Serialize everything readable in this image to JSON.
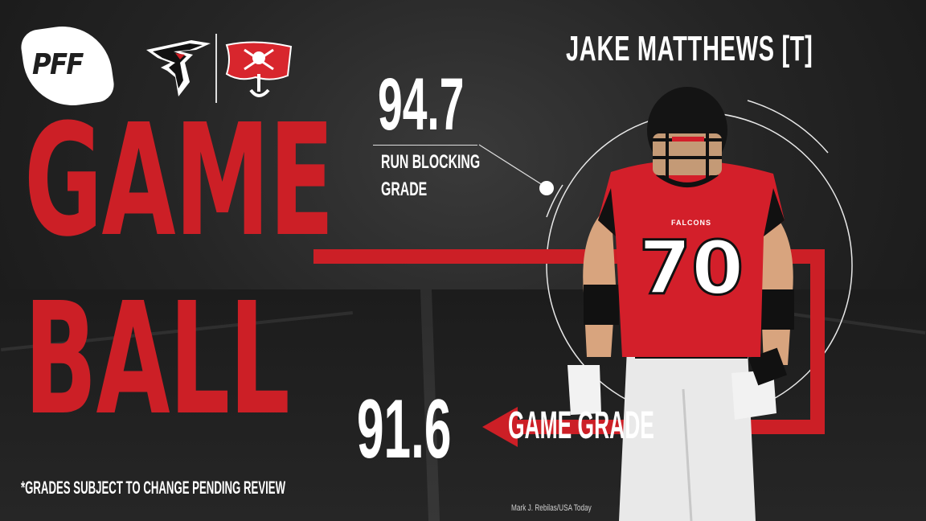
{
  "brand": {
    "logo_text": "PFF"
  },
  "teams": {
    "home_logo": "falcons-logo",
    "away_logo": "buccaneers-logo"
  },
  "player": {
    "name": "JAKE MATTHEWS [T]",
    "jersey_number": "70",
    "jersey_team": "FALCONS"
  },
  "headline": {
    "line1": "GAME",
    "line2": "BALL"
  },
  "stats": {
    "run_blocking": {
      "value": "94.7",
      "label_line1": "RUN BLOCKING",
      "label_line2": "GRADE"
    },
    "game": {
      "value": "91.6",
      "label": "GAME GRADE"
    }
  },
  "footer": {
    "disclaimer": "*GRADES SUBJECT TO CHANGE PENDING REVIEW",
    "credit": "Mark J. Rebilas/USA Today"
  },
  "colors": {
    "accent_red": "#cc1f26",
    "background": "#1f1f1f",
    "text": "#ffffff"
  }
}
